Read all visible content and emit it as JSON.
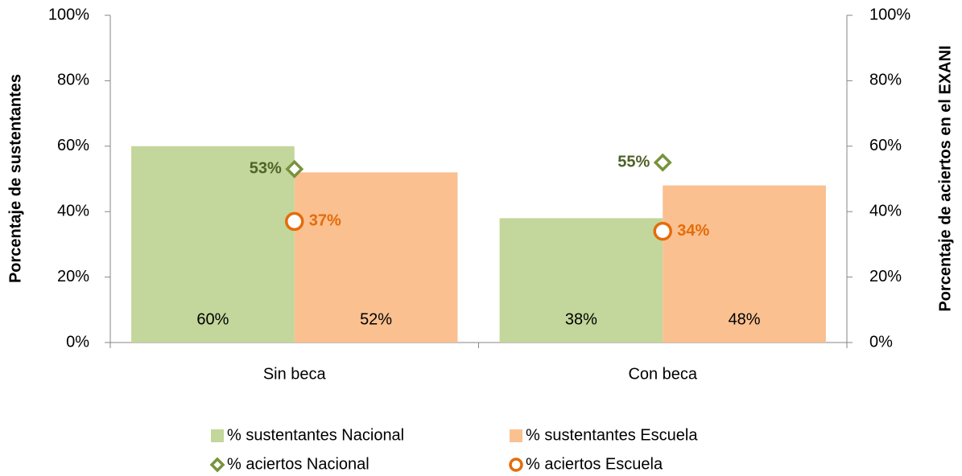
{
  "chart_data": {
    "type": "bar",
    "categories": [
      "Sin beca",
      "Con beca"
    ],
    "series": [
      {
        "name": "% sustentantes Nacional",
        "color": "#c3d69b",
        "values": [
          60,
          38
        ],
        "value_labels": [
          "60%",
          "38%"
        ]
      },
      {
        "name": "% sustentantes Escuela",
        "color": "#fac090",
        "values": [
          52,
          48
        ],
        "value_labels": [
          "52%",
          "48%"
        ]
      },
      {
        "name": "% aciertos Nacional",
        "color": "#77933c",
        "label_color": "#4f6228",
        "marker": "diamond",
        "axis": "y2",
        "label_position": "left",
        "values": [
          53,
          55
        ],
        "value_labels": [
          "53%",
          "55%"
        ]
      },
      {
        "name": "% aciertos Escuela",
        "color": "#e46c0a",
        "label_color": "#e46c0a",
        "marker": "circle",
        "axis": "y2",
        "label_position": "right",
        "values": [
          37,
          34
        ],
        "value_labels": [
          "37%",
          "34%"
        ]
      }
    ],
    "ylabel": "Porcentaje de sustentantes",
    "y2label": "Porcentaje de aciertos en el EXANI",
    "ylim": [
      0,
      100
    ],
    "yticks": [
      {
        "value": 0,
        "label": "0%"
      },
      {
        "value": 20,
        "label": "20%"
      },
      {
        "value": 40,
        "label": "40%"
      },
      {
        "value": 60,
        "label": "60%"
      },
      {
        "value": 80,
        "label": "80%"
      },
      {
        "value": 100,
        "label": "100%"
      }
    ],
    "y2lim": [
      0,
      100
    ],
    "y2ticks": [
      {
        "value": 0,
        "label": "0%"
      },
      {
        "value": 20,
        "label": "20%"
      },
      {
        "value": 40,
        "label": "40%"
      },
      {
        "value": 60,
        "label": "60%"
      },
      {
        "value": 80,
        "label": "80%"
      },
      {
        "value": 100,
        "label": "100%"
      }
    ],
    "grid": false,
    "legend": "bottom"
  }
}
